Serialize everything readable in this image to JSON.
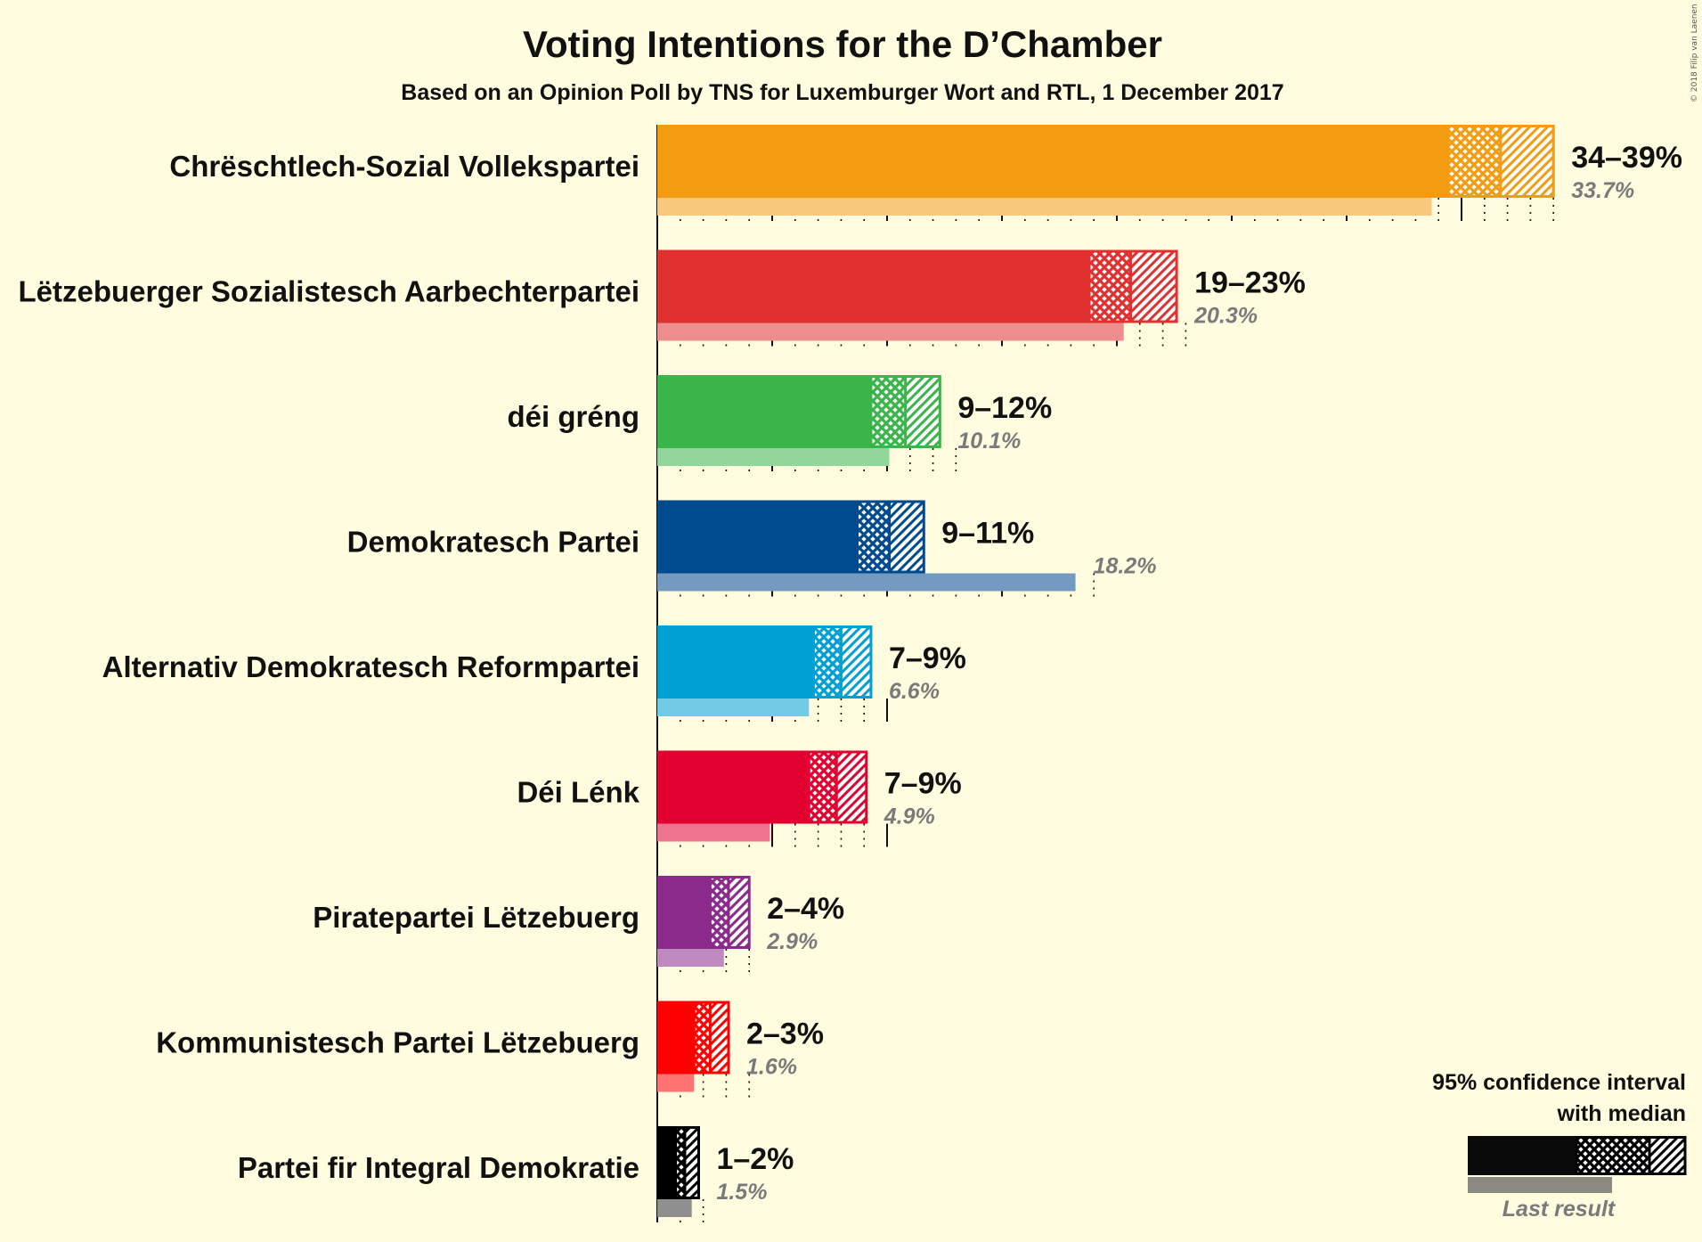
{
  "chart_data": {
    "type": "bar",
    "title": "Voting Intentions for the D’Chamber",
    "subtitle": "Based on an Opinion Poll by TNS for Luxemburger Wort and RTL, 1 December 2017",
    "copyright": "© 2018 Filip van Laenen",
    "xlim": [
      0,
      40
    ],
    "series": [
      {
        "name": "Chrëschtlech-Sozial Vollekspartei",
        "color": "#F39C12",
        "ci_low": 34.4,
        "median": 36.7,
        "ci_high": 39.0,
        "range_label": "34–39%",
        "last_result": 33.7,
        "last_label": "33.7%"
      },
      {
        "name": "Lëtzebuerger Sozialistesch Aarbechterpartei",
        "color": "#E03030",
        "ci_low": 18.8,
        "median": 20.6,
        "ci_high": 22.6,
        "range_label": "19–23%",
        "last_result": 20.3,
        "last_label": "20.3%"
      },
      {
        "name": "déi gréng",
        "color": "#3AB54A",
        "ci_low": 9.3,
        "median": 10.8,
        "ci_high": 12.3,
        "range_label": "9–12%",
        "last_result": 10.1,
        "last_label": "10.1%"
      },
      {
        "name": "Demokratesch Partei",
        "color": "#004A8F",
        "ci_low": 8.7,
        "median": 10.1,
        "ci_high": 11.6,
        "range_label": "9–11%",
        "last_result": 18.2,
        "last_label": "18.2%"
      },
      {
        "name": "Alternativ Demokratesch Reformpartei",
        "color": "#009FD4",
        "ci_low": 6.8,
        "median": 8.0,
        "ci_high": 9.3,
        "range_label": "7–9%",
        "last_result": 6.6,
        "last_label": "6.6%"
      },
      {
        "name": "Déi Lénk",
        "color": "#E10030",
        "ci_low": 6.6,
        "median": 7.8,
        "ci_high": 9.1,
        "range_label": "7–9%",
        "last_result": 4.9,
        "last_label": "4.9%"
      },
      {
        "name": "Piratepartei Lëtzebuerg",
        "color": "#8B2A8B",
        "ci_low": 2.3,
        "median": 3.1,
        "ci_high": 4.0,
        "range_label": "2–4%",
        "last_result": 2.9,
        "last_label": "2.9%"
      },
      {
        "name": "Kommunistesch Partei Lëtzebuerg",
        "color": "#FF0000",
        "ci_low": 1.6,
        "median": 2.3,
        "ci_high": 3.1,
        "range_label": "2–3%",
        "last_result": 1.6,
        "last_label": "1.6%"
      },
      {
        "name": "Partei fir Integral Demokratie",
        "color": "#000000",
        "ci_low": 0.8,
        "median": 1.2,
        "ci_high": 1.8,
        "range_label": "1–2%",
        "last_result": 1.5,
        "last_label": "1.5%"
      }
    ],
    "legend": {
      "line1": "95% confidence interval",
      "line2": "with median",
      "last_result": "Last result",
      "placement": "bottom-right"
    }
  }
}
